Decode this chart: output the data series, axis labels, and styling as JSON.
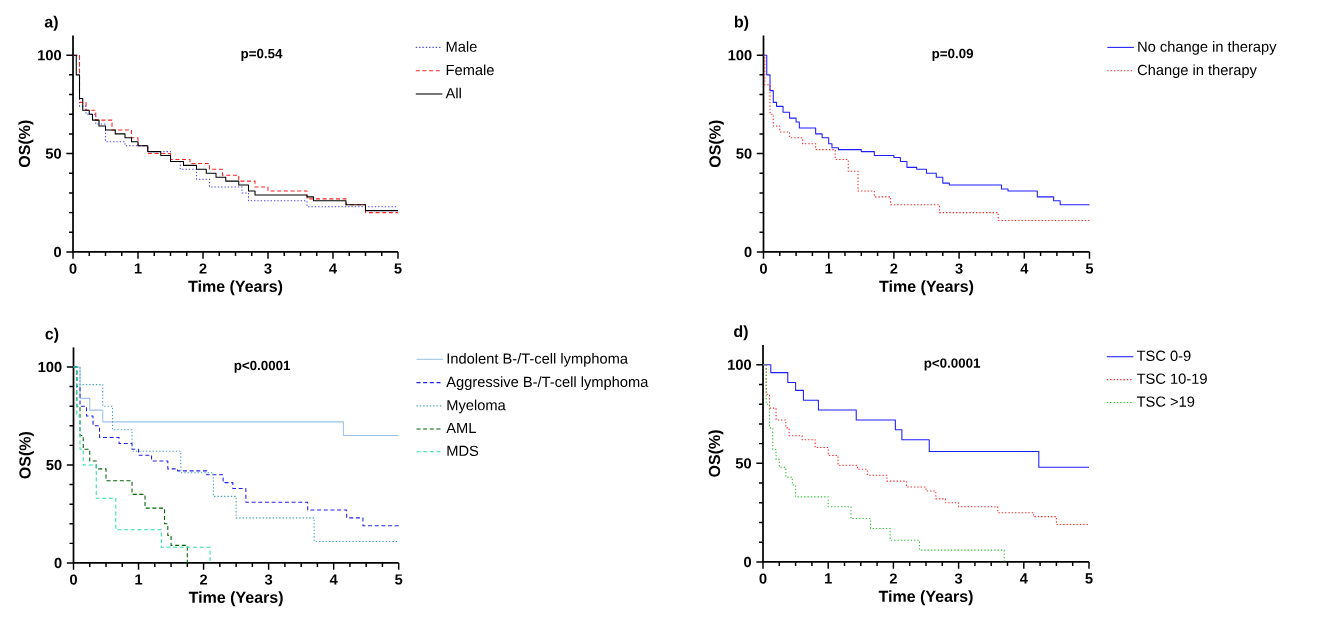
{
  "chart_data": [
    {
      "type": "step",
      "title": "a)",
      "xlabel": "Time (Years)",
      "ylabel": "OS(%)",
      "annotations": [
        "p=0.54"
      ],
      "xlim": [
        0,
        5
      ],
      "ylim": [
        0,
        110
      ],
      "xticks": [
        0,
        1,
        2,
        3,
        4,
        5
      ],
      "yticks": [
        0,
        50,
        100
      ],
      "legend": "right",
      "grid": false,
      "marker": "none",
      "series": [
        {
          "name": "Male",
          "color": "#4040ff",
          "line_style": "dotted",
          "x": [
            0,
            0.1,
            0.2,
            0.35,
            0.5,
            0.8,
            1.15,
            1.5,
            1.65,
            1.9,
            2.1,
            2.6,
            2.7,
            3.6,
            5
          ],
          "values": [
            100,
            74,
            70,
            65,
            56,
            54,
            51,
            46,
            42,
            37,
            33,
            30,
            26,
            23,
            23
          ]
        },
        {
          "name": "Female",
          "color": "#ff2020",
          "line_style": "dashed",
          "x": [
            0,
            0.1,
            0.2,
            0.35,
            0.6,
            0.9,
            1.0,
            1.15,
            1.5,
            1.8,
            2.1,
            2.3,
            2.55,
            2.8,
            3.0,
            3.6,
            4.2,
            4.5,
            5
          ],
          "values": [
            100,
            76,
            72,
            67,
            62,
            58,
            54,
            50,
            47,
            45,
            42,
            39,
            36,
            33,
            31,
            27,
            24,
            20,
            20
          ]
        },
        {
          "name": "All",
          "color": "#000000",
          "line_style": "solid",
          "x": [
            0,
            0.05,
            0.1,
            0.15,
            0.25,
            0.3,
            0.4,
            0.5,
            0.65,
            0.8,
            0.9,
            1.0,
            1.15,
            1.35,
            1.5,
            1.7,
            1.9,
            2.05,
            2.2,
            2.35,
            2.55,
            2.7,
            2.8,
            3.6,
            3.7,
            4.2,
            4.5,
            5
          ],
          "values": [
            100,
            90,
            78,
            72,
            70,
            67,
            64,
            62,
            60,
            58,
            56,
            54,
            51,
            49,
            46,
            44,
            42,
            40,
            38,
            36,
            34,
            31,
            29,
            28,
            26,
            24,
            21,
            21
          ]
        }
      ]
    },
    {
      "type": "step",
      "title": "b)",
      "xlabel": "Time (Years)",
      "ylabel": "OS(%)",
      "annotations": [
        "p=0.09"
      ],
      "xlim": [
        0,
        5
      ],
      "ylim": [
        0,
        110
      ],
      "xticks": [
        0,
        1,
        2,
        3,
        4,
        5
      ],
      "yticks": [
        0,
        50,
        100
      ],
      "legend": "right",
      "grid": false,
      "marker": "none",
      "series": [
        {
          "name": "No change in therapy",
          "color": "#1f1fff",
          "line_style": "solid",
          "x": [
            0,
            0.05,
            0.1,
            0.15,
            0.2,
            0.3,
            0.4,
            0.5,
            0.55,
            0.8,
            0.9,
            1.0,
            1.05,
            1.15,
            1.5,
            1.7,
            2.0,
            2.1,
            2.2,
            2.35,
            2.5,
            2.65,
            2.75,
            2.85,
            3.65,
            3.75,
            4.2,
            4.45,
            4.55,
            5
          ],
          "values": [
            100,
            90,
            82,
            76,
            74,
            71,
            68,
            66,
            63,
            60,
            58,
            55,
            53,
            52,
            51,
            49,
            48,
            46,
            43,
            42,
            40,
            38,
            35,
            34,
            32,
            31,
            28,
            26,
            24,
            24
          ]
        },
        {
          "name": "Change in therapy",
          "color": "#ff2020",
          "line_style": "dotted",
          "x": [
            0,
            0.02,
            0.1,
            0.15,
            0.25,
            0.4,
            0.6,
            0.8,
            1.1,
            1.3,
            1.45,
            1.7,
            1.95,
            2.7,
            3.6,
            5
          ],
          "values": [
            100,
            85,
            70,
            64,
            61,
            58,
            55,
            52,
            47,
            41,
            31,
            28,
            24,
            20,
            16,
            16
          ]
        }
      ]
    },
    {
      "type": "step",
      "title": "c)",
      "xlabel": "Time (Years)",
      "ylabel": "OS(%)",
      "annotations": [
        "p<0.0001"
      ],
      "xlim": [
        0,
        5
      ],
      "ylim": [
        0,
        110
      ],
      "xticks": [
        0,
        1,
        2,
        3,
        4,
        5
      ],
      "yticks": [
        0,
        50,
        100
      ],
      "legend": "right",
      "grid": false,
      "marker": "none",
      "series": [
        {
          "name": "Indolent B-/T-cell lymphoma",
          "color": "#9cc3ea",
          "line_style": "solid",
          "x": [
            0,
            0.1,
            0.25,
            0.45,
            4.15,
            5
          ],
          "values": [
            100,
            84,
            78,
            72,
            65,
            65
          ]
        },
        {
          "name": "Aggressive B-/T-cell lymphoma",
          "color": "#2020f0",
          "line_style": "dashed",
          "x": [
            0,
            0.05,
            0.1,
            0.2,
            0.3,
            0.4,
            0.7,
            0.9,
            1.0,
            1.2,
            1.45,
            1.6,
            2.05,
            2.3,
            2.45,
            2.65,
            3.6,
            4.2,
            4.45,
            5
          ],
          "values": [
            100,
            90,
            80,
            75,
            70,
            64,
            61,
            58,
            55,
            52,
            48,
            47,
            45,
            41,
            38,
            31,
            27,
            23,
            19,
            19
          ]
        },
        {
          "name": "Myeloma",
          "color": "#40a0b8",
          "line_style": "dotted",
          "x": [
            0,
            0.1,
            0.45,
            0.6,
            0.9,
            1.65,
            2.15,
            2.5,
            3.7,
            5
          ],
          "values": [
            100,
            91,
            80,
            68,
            57,
            46,
            34,
            23,
            11,
            11
          ]
        },
        {
          "name": "AML",
          "color": "#006400",
          "line_style": "dashed",
          "x": [
            0,
            0.05,
            0.1,
            0.15,
            0.25,
            0.35,
            0.5,
            0.9,
            1.1,
            1.4,
            1.45,
            1.5,
            1.75
          ],
          "values": [
            100,
            80,
            65,
            58,
            52,
            48,
            42,
            35,
            28,
            20,
            14,
            9,
            0
          ]
        },
        {
          "name": "MDS",
          "color": "#30e0b0",
          "line_style": "dashed",
          "x": [
            0,
            0.05,
            0.1,
            0.15,
            0.35,
            0.65,
            1.35,
            2.1
          ],
          "values": [
            100,
            75,
            58,
            50,
            33,
            17,
            8,
            0
          ]
        }
      ]
    },
    {
      "type": "step",
      "title": "d)",
      "xlabel": "Time (Years)",
      "ylabel": "OS(%)",
      "annotations": [
        "p<0.0001"
      ],
      "xlim": [
        0,
        5
      ],
      "ylim": [
        0,
        110
      ],
      "xticks": [
        0,
        1,
        2,
        3,
        4,
        5
      ],
      "yticks": [
        0,
        50,
        100
      ],
      "legend": "right",
      "grid": false,
      "marker": "none",
      "series": [
        {
          "name": "TSC 0-9",
          "color": "#1f1fff",
          "line_style": "solid",
          "x": [
            0,
            0.12,
            0.38,
            0.5,
            0.62,
            0.85,
            1.43,
            2.03,
            2.13,
            2.55,
            4.23,
            5
          ],
          "values": [
            100,
            96,
            91,
            87,
            82,
            77,
            72,
            67,
            62,
            56,
            48,
            48
          ]
        },
        {
          "name": "TSC 10-19",
          "color": "#ff2020",
          "line_style": "dotted",
          "x": [
            0,
            0.05,
            0.1,
            0.2,
            0.35,
            0.4,
            0.6,
            0.8,
            1.0,
            1.15,
            1.45,
            1.6,
            1.9,
            2.2,
            2.5,
            2.65,
            2.8,
            3.0,
            3.6,
            4.15,
            4.5,
            5
          ],
          "values": [
            100,
            85,
            78,
            72,
            68,
            64,
            62,
            58,
            54,
            49,
            47,
            44,
            41,
            38,
            36,
            32,
            30,
            28,
            25,
            23,
            19,
            19
          ]
        },
        {
          "name": "TSC >19",
          "color": "#30c030",
          "line_style": "dotted",
          "x": [
            0,
            0.05,
            0.1,
            0.15,
            0.2,
            0.25,
            0.35,
            0.45,
            0.5,
            1.0,
            1.35,
            1.65,
            1.95,
            2.4,
            3.7
          ],
          "values": [
            100,
            80,
            68,
            57,
            52,
            48,
            43,
            39,
            33,
            28,
            22,
            17,
            11,
            6,
            0
          ]
        }
      ]
    }
  ]
}
